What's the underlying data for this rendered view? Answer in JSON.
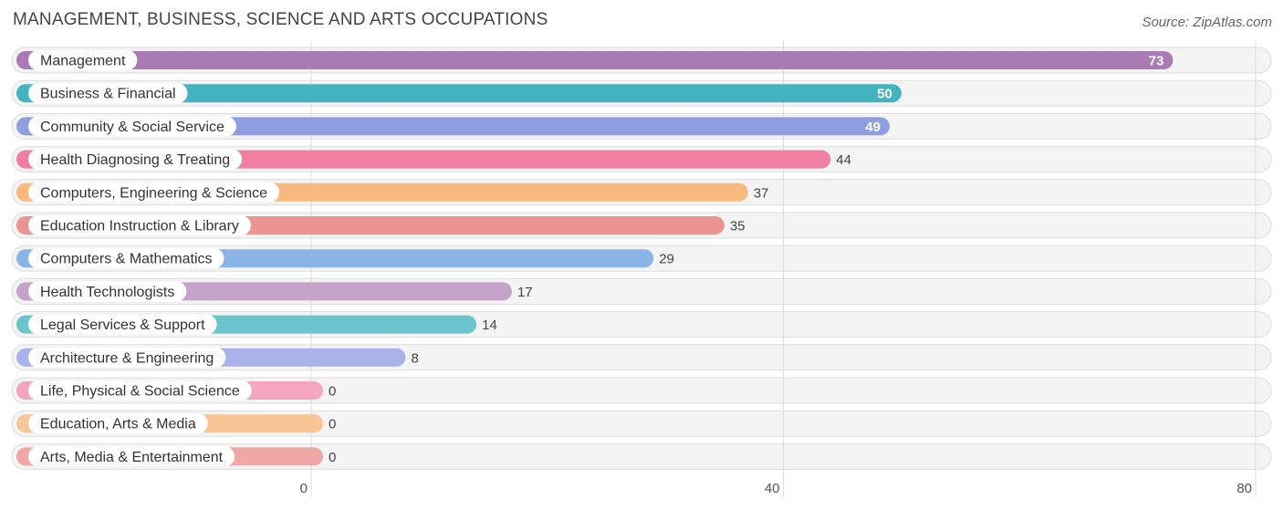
{
  "header": {
    "title": "MANAGEMENT, BUSINESS, SCIENCE AND ARTS OCCUPATIONS",
    "source": "Source: ZipAtlas.com"
  },
  "chart_data": {
    "type": "bar",
    "orientation": "horizontal",
    "categories": [
      "Management",
      "Business & Financial",
      "Community & Social Service",
      "Health Diagnosing & Treating",
      "Computers, Engineering & Science",
      "Education Instruction & Library",
      "Computers & Mathematics",
      "Health Technologists",
      "Legal Services & Support",
      "Architecture & Engineering",
      "Life, Physical & Social Science",
      "Education, Arts & Media",
      "Arts, Media & Entertainment"
    ],
    "values": [
      73,
      50,
      49,
      44,
      37,
      35,
      29,
      17,
      14,
      8,
      0,
      0,
      0
    ],
    "colors": [
      "#a97bb5",
      "#43b3c2",
      "#8f9ee0",
      "#f27fa2",
      "#f8b97e",
      "#eb9591",
      "#8bb4e6",
      "#c5a3cb",
      "#6cc4cc",
      "#a9b3ea",
      "#f6a5bf",
      "#f9c595",
      "#f0a8a6"
    ],
    "xlim": [
      0,
      80
    ],
    "x_ticks": [
      0,
      40,
      80
    ],
    "grid": true
  }
}
